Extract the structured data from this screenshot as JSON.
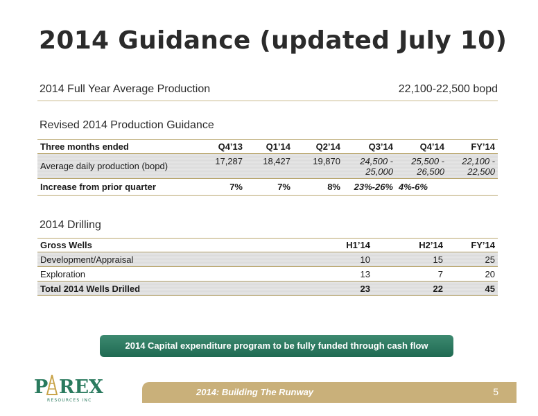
{
  "title": "2014 Guidance (updated July 10)",
  "full_year": {
    "label": "2014 Full Year Average Production",
    "value": "22,100-22,500 bopd"
  },
  "production": {
    "heading": "Revised 2014 Production Guidance",
    "headers": [
      "Three months ended",
      "Q4’13",
      "Q1’14",
      "Q2’14",
      "Q3’14",
      "Q4’14",
      "FY’14"
    ],
    "avg_row": {
      "label": "Average daily production (bopd)",
      "values": [
        "17,287",
        "18,427",
        "19,870",
        "24,500 -",
        "25,500 -",
        "22,100 -"
      ],
      "values2": [
        "",
        "",
        "",
        "25,000",
        "26,500",
        "22,500"
      ]
    },
    "increase_row": {
      "label": "Increase from prior quarter",
      "values": [
        "7%",
        "7%",
        "8%",
        "23%-26%",
        "4%-6%",
        ""
      ]
    }
  },
  "drilling": {
    "heading": "2014 Drilling",
    "headers": [
      "Gross Wells",
      "H1’14",
      "H2’14",
      "FY’14"
    ],
    "rows": [
      {
        "label": "Development/Appraisal",
        "values": [
          "10",
          "15",
          "25"
        ]
      },
      {
        "label": "Exploration",
        "values": [
          "13",
          "7",
          "20"
        ]
      },
      {
        "label": "Total 2014 Wells Drilled",
        "values": [
          "23",
          "22",
          "45"
        ]
      }
    ]
  },
  "banner": "2014 Capital expenditure  program to be fully funded through cash flow",
  "logo": {
    "name": "PAREX",
    "sub": "RESOURCES INC"
  },
  "footer": {
    "tagline": "2014: Building The Runway",
    "page": "5"
  },
  "colors": {
    "brand_green": "#2a7a5e",
    "gold": "#c9b07a",
    "rule": "#b8a56c"
  },
  "icons": [
    "oil-derrick-icon"
  ]
}
